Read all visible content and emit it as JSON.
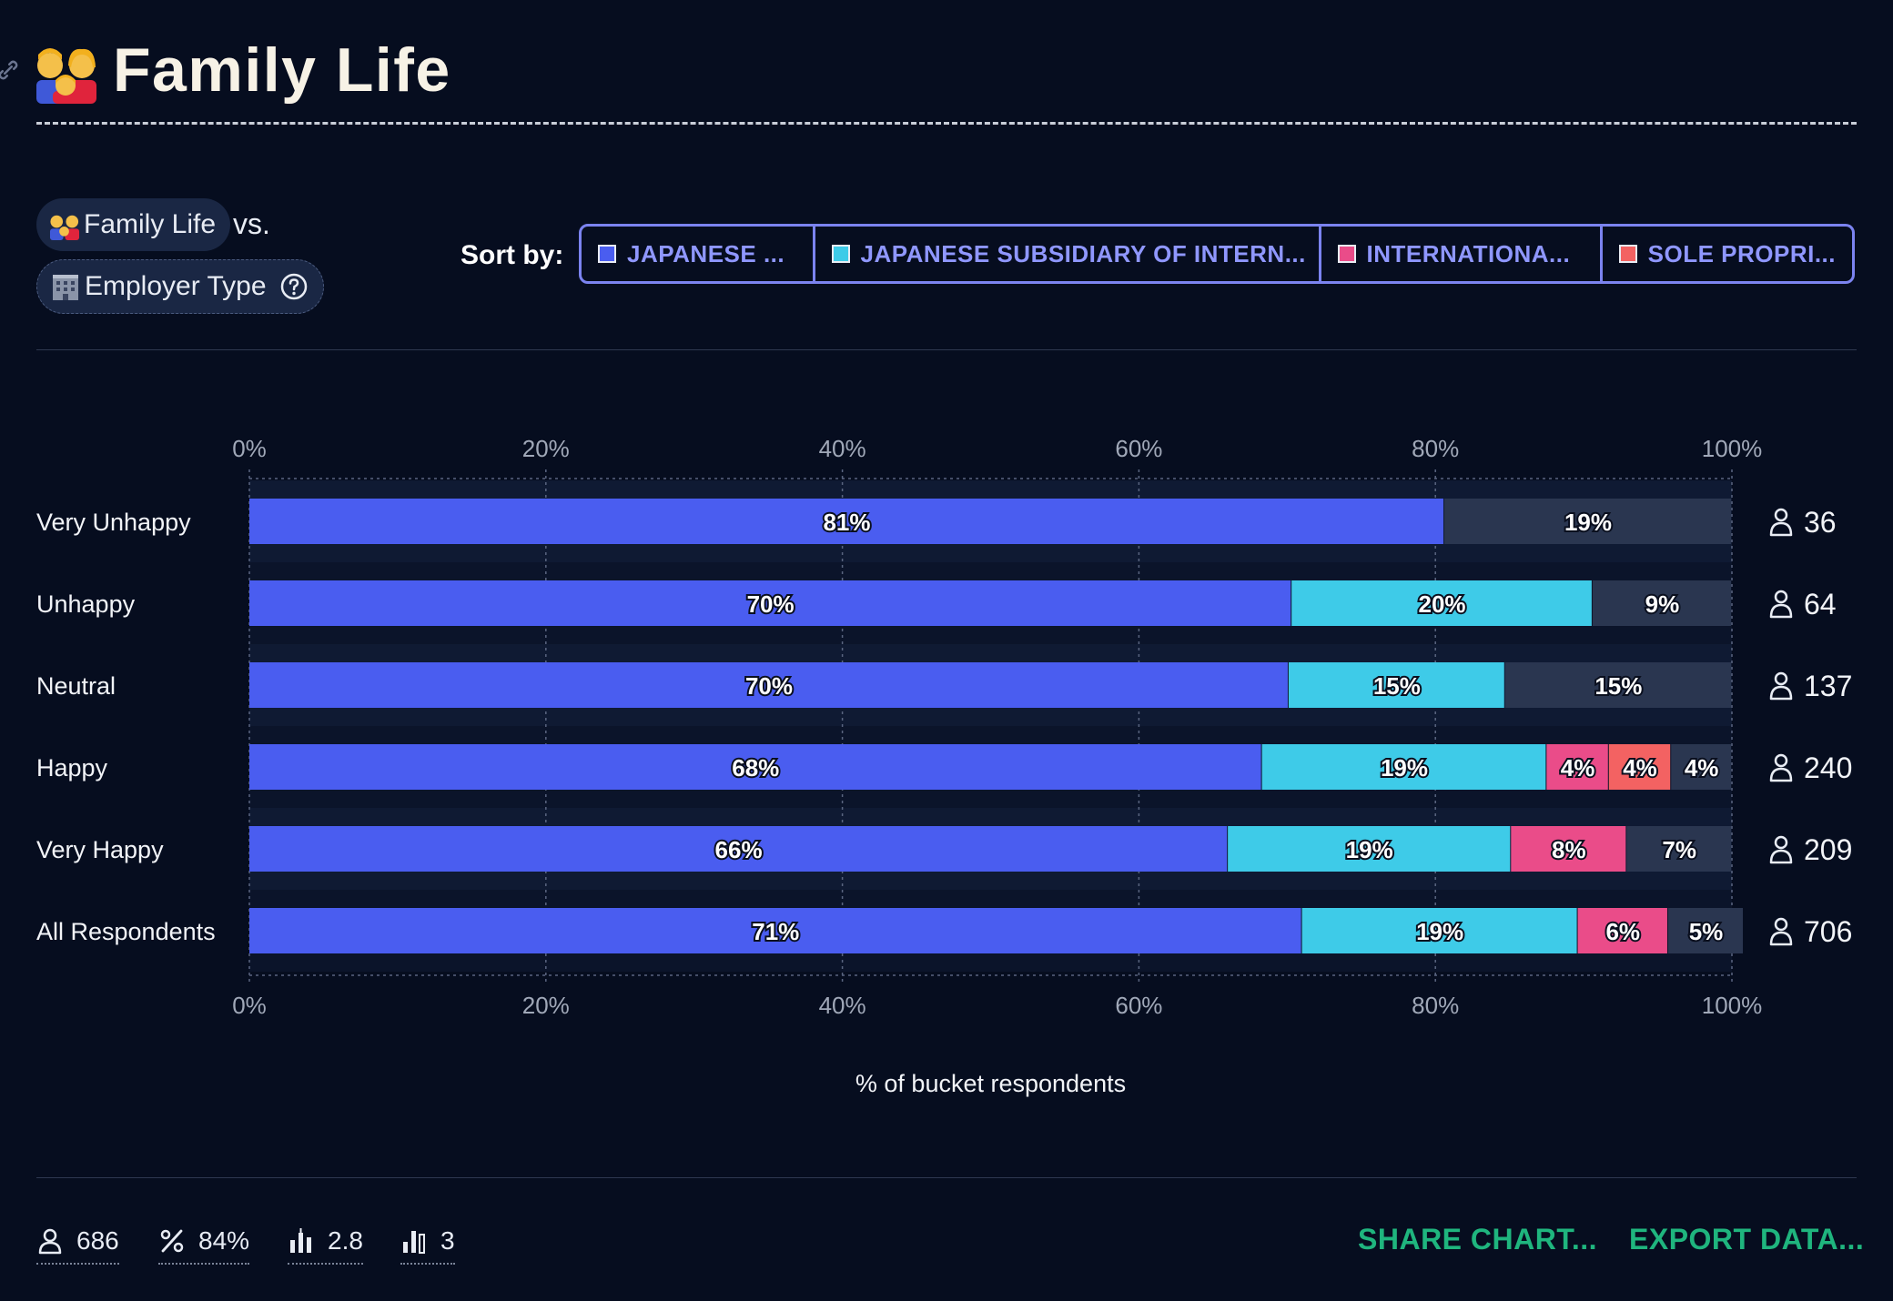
{
  "header": {
    "title": "Family Life",
    "emoji": "family-emoji"
  },
  "controls": {
    "question_chip": "Family Life",
    "vs_label": "vs.",
    "compare_chip": "Employer Type",
    "sort_by_label": "Sort by:",
    "sort_options": [
      {
        "label": "JAPANESE ...",
        "color": "#4a5df0"
      },
      {
        "label": "JAPANESE SUBSIDIARY OF INTERN...",
        "color": "#3ecbe8"
      },
      {
        "label": "INTERNATIONA...",
        "color": "#ea4c89"
      },
      {
        "label": "SOLE PROPRI...",
        "color": "#f36262"
      }
    ]
  },
  "chart_data": {
    "type": "bar",
    "orientation": "horizontal-stacked-100",
    "categories": [
      "Very Unhappy",
      "Unhappy",
      "Neutral",
      "Happy",
      "Very Happy",
      "All Respondents"
    ],
    "series": [
      {
        "name": "JAPANESE ...",
        "color": "#4a5df0",
        "values": [
          80.6,
          70.3,
          70.1,
          68.3,
          66.0,
          71.0
        ]
      },
      {
        "name": "JAPANESE SUBSIDIARY OF INTERN...",
        "color": "#3ecbe8",
        "values": [
          0,
          20.3,
          14.6,
          19.2,
          19.1,
          18.6
        ]
      },
      {
        "name": "INTERNATIONA...",
        "color": "#ea4c89",
        "values": [
          0,
          0,
          0,
          4.2,
          7.8,
          6.1
        ]
      },
      {
        "name": "SOLE PROPRI...",
        "color": "#f36262",
        "values": [
          0,
          0,
          0,
          4.2,
          0,
          0
        ]
      },
      {
        "color": "#2a3650",
        "values": [
          19.4,
          9.4,
          15.3,
          4.1,
          7.1,
          5.1
        ]
      }
    ],
    "bar_labels": [
      [
        "81%",
        "",
        "",
        "",
        "19%"
      ],
      [
        "70%",
        "20%",
        "",
        "",
        "9%"
      ],
      [
        "70%",
        "15%",
        "",
        "",
        "15%"
      ],
      [
        "68%",
        "19%",
        "4%",
        "4%",
        "4%"
      ],
      [
        "66%",
        "19%",
        "8%",
        "",
        "7%"
      ],
      [
        "71%",
        "19%",
        "6%",
        "",
        "5%"
      ]
    ],
    "respondent_counts": [
      "36",
      "64",
      "137",
      "240",
      "209",
      "706"
    ],
    "xlim": [
      0,
      100
    ],
    "x_ticks": [
      "0%",
      "20%",
      "40%",
      "60%",
      "80%",
      "100%"
    ],
    "xlabel": "% of bucket respondents",
    "grid": true
  },
  "footer": {
    "stats": {
      "respondents": "686",
      "percent": "84%",
      "average": "2.8",
      "mode": "3"
    },
    "share_label": "SHARE CHART...",
    "export_label": "EXPORT DATA..."
  }
}
